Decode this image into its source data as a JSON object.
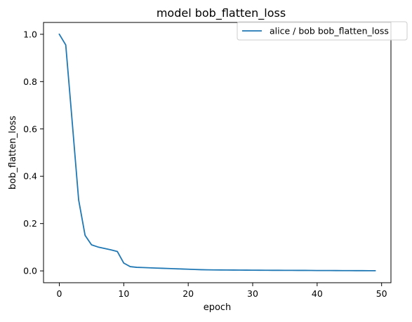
{
  "chart_data": {
    "type": "line",
    "title": "model bob_flatten_loss",
    "xlabel": "epoch",
    "ylabel": "bob_flatten_loss",
    "xlim": [
      -2.45,
      51.45
    ],
    "ylim": [
      -0.05,
      1.05
    ],
    "x_ticks": [
      0,
      10,
      20,
      30,
      40,
      50
    ],
    "y_ticks": [
      0.0,
      0.2,
      0.4,
      0.6,
      0.8,
      1.0
    ],
    "x_tick_labels": [
      "0",
      "10",
      "20",
      "30",
      "40",
      "50"
    ],
    "y_tick_labels": [
      "0.0",
      "0.2",
      "0.4",
      "0.6",
      "0.8",
      "1.0"
    ],
    "grid": false,
    "legend_position": "top-right",
    "series": [
      {
        "name": "alice / bob bob_flatten_loss",
        "color": "#1f77b4",
        "x": [
          0,
          1,
          2,
          3,
          4,
          5,
          6,
          7,
          8,
          9,
          10,
          11,
          12,
          13,
          14,
          15,
          16,
          17,
          18,
          19,
          20,
          21,
          22,
          23,
          24,
          25,
          26,
          27,
          28,
          29,
          30,
          31,
          32,
          33,
          34,
          35,
          36,
          37,
          38,
          39,
          40,
          41,
          42,
          43,
          44,
          45,
          46,
          47,
          48,
          49
        ],
        "values": [
          1.0,
          0.955,
          0.63,
          0.3,
          0.15,
          0.11,
          0.101,
          0.095,
          0.089,
          0.082,
          0.033,
          0.018,
          0.015,
          0.014,
          0.013,
          0.012,
          0.011,
          0.01,
          0.009,
          0.008,
          0.007,
          0.006,
          0.005,
          0.0045,
          0.0042,
          0.004,
          0.0038,
          0.0036,
          0.0034,
          0.0032,
          0.003,
          0.0028,
          0.0026,
          0.0025,
          0.0024,
          0.0023,
          0.0022,
          0.0021,
          0.002,
          0.0018,
          0.0016,
          0.0015,
          0.0014,
          0.0013,
          0.0012,
          0.0011,
          0.001,
          0.0009,
          0.0008,
          0.0007
        ]
      }
    ]
  }
}
